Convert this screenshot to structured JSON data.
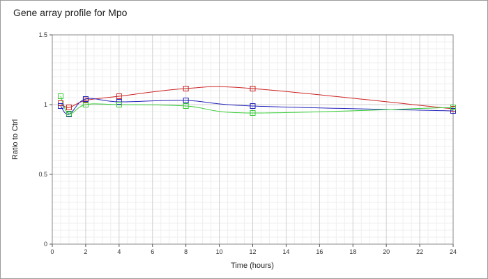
{
  "chart_data": {
    "type": "line",
    "title": "Gene array profile for Mpo",
    "xlabel": "Time (hours)",
    "ylabel": "Ratio to Ctrl",
    "xlim": [
      0,
      24
    ],
    "ylim": [
      0,
      1.5
    ],
    "x_ticks": [
      0,
      2,
      4,
      6,
      8,
      10,
      12,
      14,
      16,
      18,
      20,
      22,
      24
    ],
    "y_ticks": [
      0,
      0.5,
      1,
      1.5
    ],
    "x_tick_labels": [
      "0",
      "2",
      "4",
      "6",
      "8",
      "10",
      "12",
      "14",
      "16",
      "18",
      "20",
      "22",
      "24"
    ],
    "y_tick_labels": [
      "0",
      "0.5",
      "1",
      "1.5"
    ],
    "grid": true,
    "series": [
      {
        "color": "#cc2222",
        "x": [
          0.5,
          1,
          2,
          4,
          8,
          12,
          24
        ],
        "y": [
          1.01,
          0.98,
          1.03,
          1.06,
          1.115,
          1.115,
          0.97
        ]
      },
      {
        "color": "#2222bb",
        "x": [
          0.5,
          1,
          2,
          4,
          8,
          12,
          24
        ],
        "y": [
          0.99,
          0.93,
          1.04,
          1.02,
          1.03,
          0.99,
          0.955
        ]
      },
      {
        "color": "#33cc33",
        "x": [
          0.5,
          1,
          2,
          4,
          8,
          12,
          24
        ],
        "y": [
          1.06,
          0.935,
          1.0,
          1.0,
          0.99,
          0.94,
          0.98
        ]
      }
    ]
  }
}
